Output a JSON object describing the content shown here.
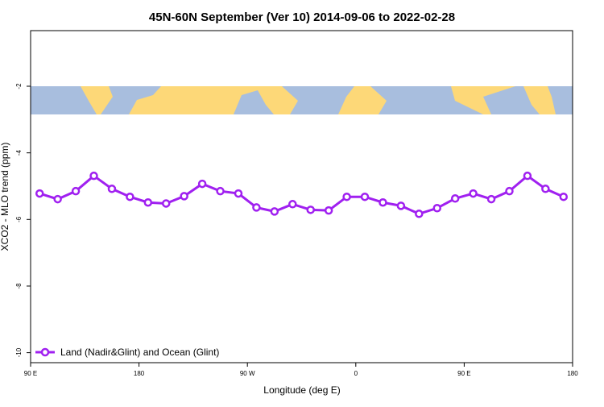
{
  "chart_data": {
    "type": "line",
    "title": "45N-60N September (Ver 10)   2014-09-06 to 2022-02-28",
    "x_label": "Longitude (deg E)",
    "y_label": "XCO2 - MLO trend (ppm)",
    "x": [
      97.5,
      112.5,
      127.5,
      142.5,
      157.5,
      172.5,
      187.5,
      202.5,
      217.5,
      232.5,
      247.5,
      262.5,
      277.5,
      292.5,
      307.5,
      322.5,
      337.5,
      352.5,
      367.5,
      382.5,
      397.5,
      412.5,
      427.5,
      442.5,
      457.5,
      472.5,
      487.5,
      502.5,
      517.5,
      532.5
    ],
    "series": [
      {
        "name": "Land (Nadir&Glint) and Ocean (Glint)",
        "color": "#a020f0",
        "values": [
          -5.22,
          -5.39,
          -5.15,
          -4.69,
          -5.08,
          -5.32,
          -5.49,
          -5.52,
          -5.3,
          -4.93,
          -5.15,
          -5.22,
          -5.64,
          -5.76,
          -5.54,
          -5.71,
          -5.73,
          -5.32,
          -5.32,
          -5.49,
          -5.59,
          -5.83,
          -5.66,
          -5.37,
          -5.22,
          -5.39,
          -5.15,
          -4.69,
          -5.08,
          -5.32
        ]
      }
    ],
    "xlim": [
      90,
      540
    ],
    "xticks": [
      {
        "value": 90,
        "label": "90 E"
      },
      180,
      {
        "value": 270,
        "label": "90 W"
      },
      {
        "value": 360,
        "label": "0"
      },
      {
        "value": 450,
        "label": "90 E"
      },
      {
        "value": 540,
        "label": "180"
      }
    ],
    "ylim": [
      -10.3,
      -0.33
    ],
    "yticks": [
      -2,
      -4,
      -6,
      -8,
      -10
    ],
    "legend": "bottom-left"
  }
}
